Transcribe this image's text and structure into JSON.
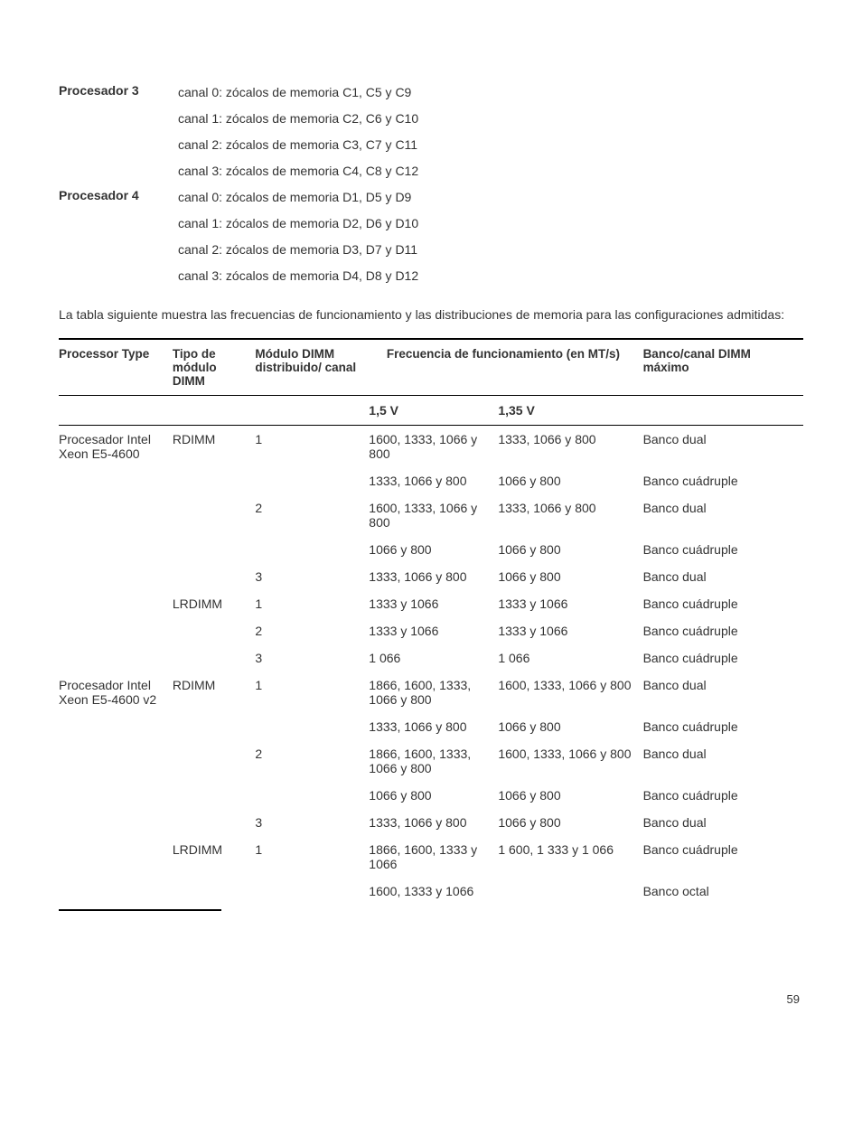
{
  "processors": [
    {
      "label": "Procesador 3",
      "channels": [
        "canal 0: zócalos de memoria C1, C5 y C9",
        "canal 1: zócalos de memoria C2, C6 y C10",
        "canal 2: zócalos de memoria C3, C7 y C11",
        "canal 3: zócalos de memoria C4, C8 y C12"
      ]
    },
    {
      "label": "Procesador 4",
      "channels": [
        "canal 0: zócalos de memoria D1, D5 y D9",
        "canal 1: zócalos de memoria D2, D6 y D10",
        "canal 2: zócalos de memoria D3, D7 y D11",
        "canal 3: zócalos de memoria D4, D8 y D12"
      ]
    }
  ],
  "intro_text": "La tabla siguiente muestra las frecuencias de funcionamiento y las distribuciones de memoria para las configuraciones admitidas:",
  "table": {
    "headers": {
      "processor_type": "Processor Type",
      "dimm_type": "Tipo de módulo DIMM",
      "dimm_per_channel": "Módulo DIMM distribuido/ canal",
      "freq_group": "Frecuencia de funcionamiento (en MT/s)",
      "bank_max": "Banco/canal DIMM máximo",
      "v15": "1,5 V",
      "v135": "1,35 V"
    },
    "rows": [
      {
        "pt": "Procesador Intel Xeon E5-4600",
        "dt": "RDIMM",
        "dp": "1",
        "v15": "1600, 1333, 1066 y 800",
        "v135": "1333, 1066 y 800",
        "bk": "Banco dual"
      },
      {
        "pt": "",
        "dt": "",
        "dp": "",
        "v15": "1333, 1066 y 800",
        "v135": "1066 y 800",
        "bk": "Banco cuádruple"
      },
      {
        "pt": "",
        "dt": "",
        "dp": "2",
        "v15": "1600, 1333, 1066 y 800",
        "v135": "1333, 1066 y 800",
        "bk": "Banco dual"
      },
      {
        "pt": "",
        "dt": "",
        "dp": "",
        "v15": "1066 y 800",
        "v135": "1066 y 800",
        "bk": "Banco cuádruple"
      },
      {
        "pt": "",
        "dt": "",
        "dp": "3",
        "v15": "1333, 1066 y 800",
        "v135": "1066 y 800",
        "bk": "Banco dual"
      },
      {
        "pt": "",
        "dt": "LRDIMM",
        "dp": "1",
        "v15": "1333 y 1066",
        "v135": "1333 y 1066",
        "bk": "Banco cuádruple"
      },
      {
        "pt": "",
        "dt": "",
        "dp": "2",
        "v15": "1333 y 1066",
        "v135": "1333 y 1066",
        "bk": "Banco cuádruple"
      },
      {
        "pt": "",
        "dt": "",
        "dp": "3",
        "v15": "1 066",
        "v135": "1 066",
        "bk": "Banco cuádruple"
      },
      {
        "pt": "Procesador Intel Xeon E5-4600 v2",
        "dt": "RDIMM",
        "dp": "1",
        "v15": "1866, 1600, 1333, 1066 y 800",
        "v135": "1600, 1333, 1066 y 800",
        "bk": "Banco dual"
      },
      {
        "pt": "",
        "dt": "",
        "dp": "",
        "v15": "1333, 1066 y 800",
        "v135": "1066 y 800",
        "bk": "Banco cuádruple"
      },
      {
        "pt": "",
        "dt": "",
        "dp": "2",
        "v15": "1866, 1600, 1333, 1066 y 800",
        "v135": "1600, 1333, 1066 y 800",
        "bk": "Banco dual"
      },
      {
        "pt": "",
        "dt": "",
        "dp": "",
        "v15": "1066 y 800",
        "v135": "1066 y 800",
        "bk": "Banco cuádruple"
      },
      {
        "pt": "",
        "dt": "",
        "dp": "3",
        "v15": "1333, 1066 y 800",
        "v135": "1066 y 800",
        "bk": "Banco dual"
      },
      {
        "pt": "",
        "dt": "LRDIMM",
        "dp": "1",
        "v15": "1866, 1600, 1333 y 1066",
        "v135": "1 600, 1 333 y 1 066",
        "bk": "Banco cuádruple"
      },
      {
        "pt": "",
        "dt": "",
        "dp": "",
        "v15": "1600, 1333 y 1066",
        "v135": "",
        "bk": "Banco octal"
      }
    ]
  },
  "page_number": "59"
}
